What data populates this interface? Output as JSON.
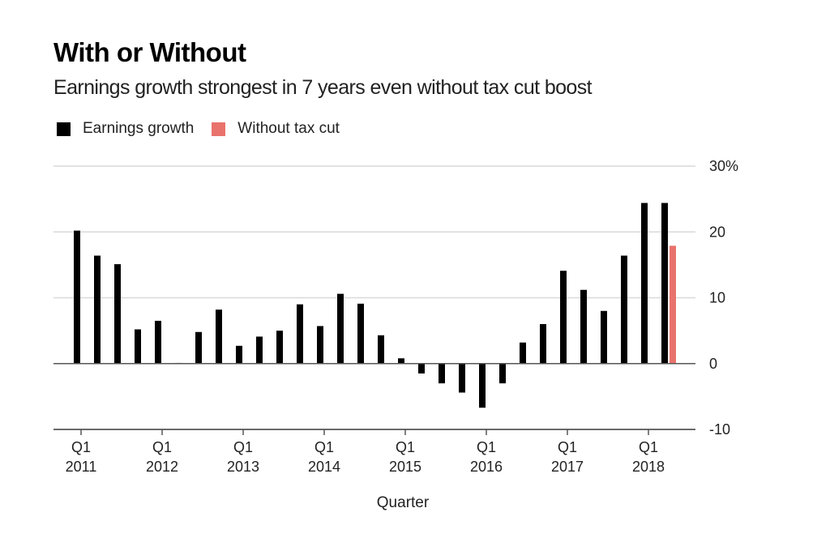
{
  "title": "With or Without",
  "subtitle": "Earnings growth strongest in 7 years even without tax cut boost",
  "legend": {
    "earnings_label": "Earnings growth",
    "without_label": "Without tax cut",
    "placement": "top-left"
  },
  "colors": {
    "earnings": "#000000",
    "without_tax_cut": "#e8736c",
    "gridline": "#d9d9d9",
    "axis": "#555555"
  },
  "chart_data": {
    "type": "bar",
    "title": "With or Without",
    "subtitle": "Earnings growth strongest in 7 years even without tax cut boost",
    "xlabel": "Quarter",
    "ylabel": "",
    "ylim": [
      -10,
      30
    ],
    "yticks": [
      -10,
      0,
      10,
      20,
      30
    ],
    "ytick_labels": [
      "-10",
      "0",
      "10",
      "20",
      "30%"
    ],
    "grid": true,
    "legend_position": "top-left",
    "x_ticks": [
      {
        "q1": "Q1",
        "year": "2011",
        "index": 0
      },
      {
        "q1": "Q1",
        "year": "2012",
        "index": 4
      },
      {
        "q1": "Q1",
        "year": "2013",
        "index": 8
      },
      {
        "q1": "Q1",
        "year": "2014",
        "index": 12
      },
      {
        "q1": "Q1",
        "year": "2015",
        "index": 16
      },
      {
        "q1": "Q1",
        "year": "2016",
        "index": 20
      },
      {
        "q1": "Q1",
        "year": "2017",
        "index": 24
      },
      {
        "q1": "Q1",
        "year": "2018",
        "index": 28
      }
    ],
    "categories": [
      "Q1 2011",
      "Q2 2011",
      "Q3 2011",
      "Q4 2011",
      "Q1 2012",
      "Q2 2012",
      "Q3 2012",
      "Q4 2012",
      "Q1 2013",
      "Q2 2013",
      "Q3 2013",
      "Q4 2013",
      "Q1 2014",
      "Q2 2014",
      "Q3 2014",
      "Q4 2014",
      "Q1 2015",
      "Q2 2015",
      "Q3 2015",
      "Q4 2015",
      "Q1 2016",
      "Q2 2016",
      "Q3 2016",
      "Q4 2016",
      "Q1 2017",
      "Q2 2017",
      "Q3 2017",
      "Q4 2017",
      "Q1 2018",
      "Q2 2018"
    ],
    "series": [
      {
        "name": "Earnings growth",
        "values": [
          20.2,
          16.4,
          15.1,
          5.2,
          6.5,
          0.1,
          4.8,
          8.2,
          2.7,
          4.1,
          5.0,
          9.0,
          5.7,
          10.6,
          9.1,
          4.3,
          0.8,
          -1.5,
          -3.0,
          -4.4,
          -6.7,
          -3.0,
          3.2,
          6.0,
          14.1,
          11.2,
          8.0,
          16.4,
          24.4,
          24.4
        ]
      },
      {
        "name": "Without tax cut",
        "values": [
          null,
          null,
          null,
          null,
          null,
          null,
          null,
          null,
          null,
          null,
          null,
          null,
          null,
          null,
          null,
          null,
          null,
          null,
          null,
          null,
          null,
          null,
          null,
          null,
          null,
          null,
          null,
          null,
          null,
          17.9
        ]
      }
    ]
  }
}
